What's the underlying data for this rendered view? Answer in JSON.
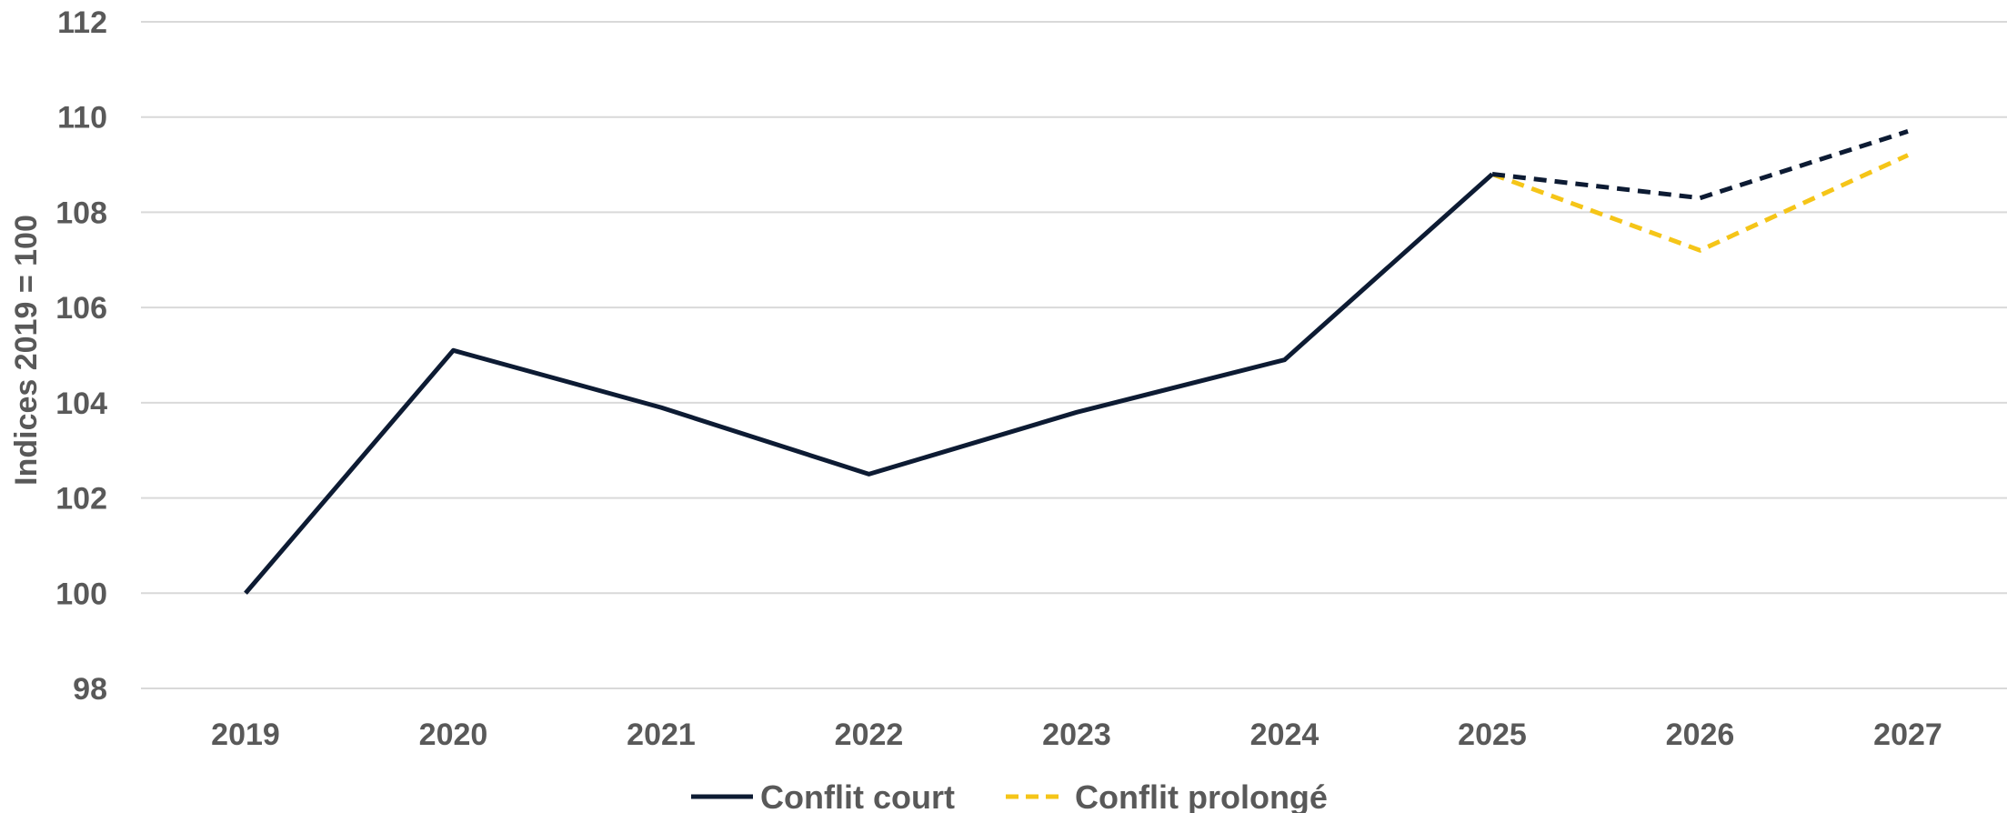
{
  "chart_data": {
    "type": "line",
    "ylabel": "Indices 2019 = 100",
    "xlabel": "",
    "categories": [
      "2019",
      "2020",
      "2021",
      "2022",
      "2023",
      "2024",
      "2025",
      "2026",
      "2027"
    ],
    "ylim": [
      98,
      112
    ],
    "yticks": [
      "98",
      "100",
      "102",
      "104",
      "106",
      "108",
      "110",
      "112"
    ],
    "grid": true,
    "legend_position": "bottom",
    "series": [
      {
        "name": "Conflit court",
        "color": "#0d1b33",
        "style": "solid, dashed from 2025 (projection)",
        "values": [
          100,
          105.1,
          103.9,
          102.5,
          103.8,
          104.9,
          108.8,
          108.3,
          109.7
        ]
      },
      {
        "name": "Conflit prolongé",
        "color": "#f5c518",
        "style": "dashed",
        "values": [
          null,
          null,
          null,
          null,
          null,
          null,
          108.8,
          107.2,
          109.2
        ]
      }
    ]
  }
}
